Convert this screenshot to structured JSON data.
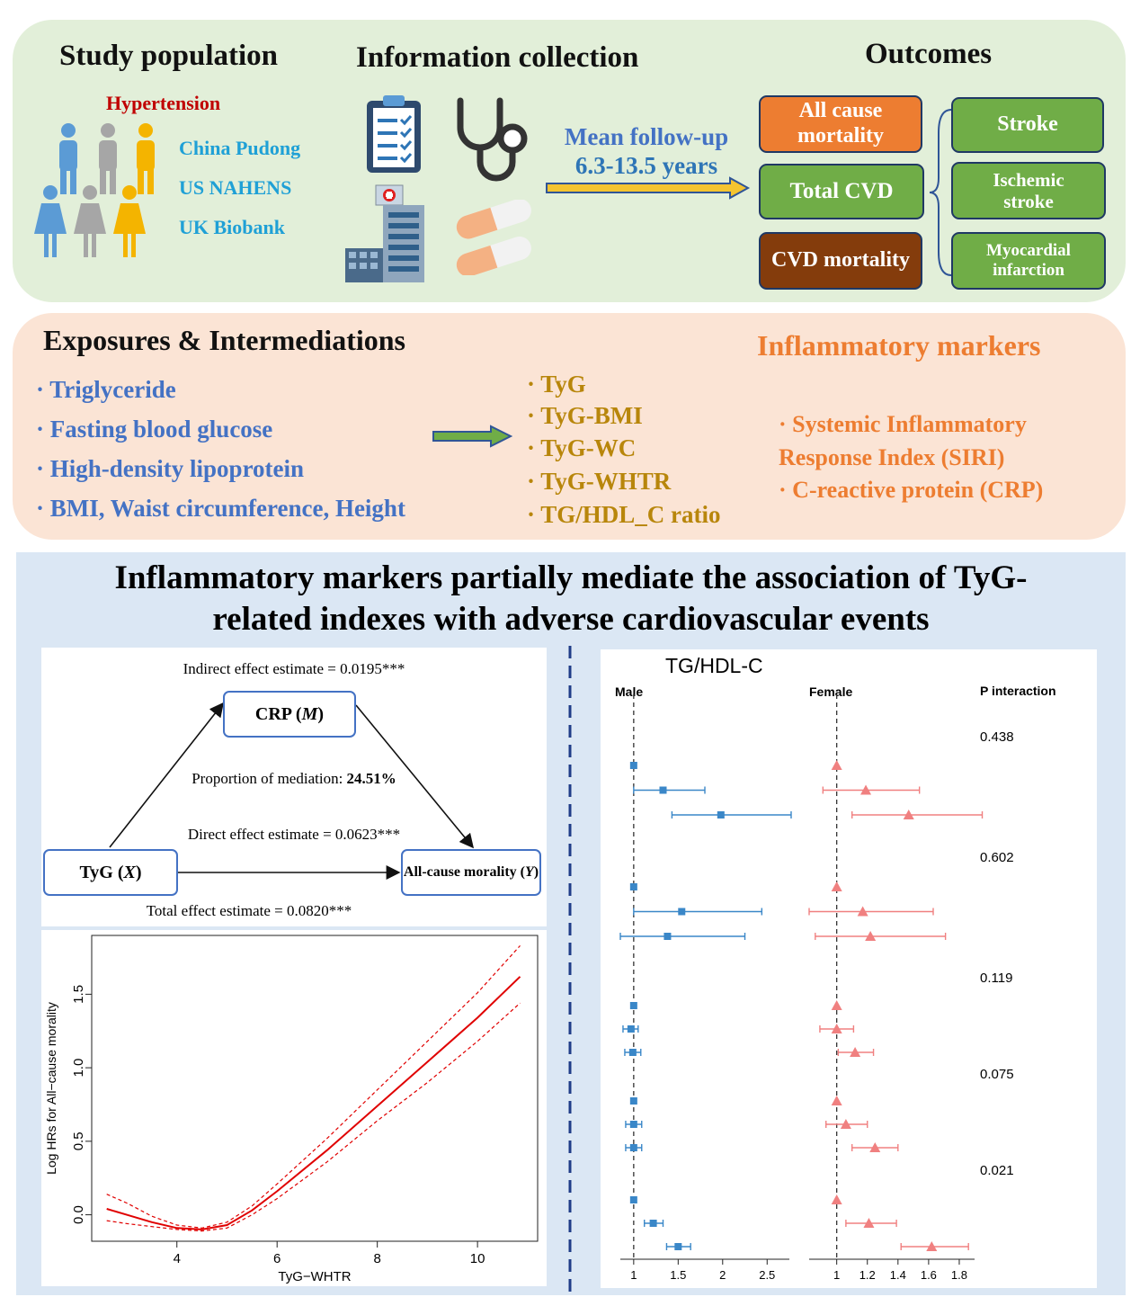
{
  "top": {
    "study_population": "Study population",
    "hypertension": "Hypertension",
    "populations": [
      "China Pudong",
      "US NAHENS",
      "UK Biobank"
    ],
    "information_collection": "Information collection",
    "followup_line1": "Mean follow-up",
    "followup_line2": "6.3-13.5 years",
    "outcomes": "Outcomes",
    "outcome_boxes": [
      "All cause mortality",
      "Total CVD",
      "CVD mortality"
    ],
    "cvd_subtypes": [
      "Stroke",
      "Ischemic stroke",
      "Myocardial infarction"
    ]
  },
  "middle": {
    "exposures_title": "Exposures & Intermediations",
    "exposures": [
      "· Triglyceride",
      "· Fasting blood glucose",
      "· High-density lipoprotein",
      "· BMI, Waist circumference, Height"
    ],
    "indexes": [
      "· TyG",
      "· TyG-BMI",
      "· TyG-WC",
      "· TyG-WHTR",
      "· TG/HDL_C ratio"
    ],
    "inflammatory_title": "Inflammatory markers",
    "markers_line1": "· Systemic Inflammatory",
    "markers_line2": "Response Index (SIRI)",
    "markers_line3": "· C-reactive protein (CRP)"
  },
  "bottom": {
    "title_line1": "Inflammatory markers partially mediate the association of TyG-",
    "title_line2": "related indexes with adverse cardiovascular events",
    "mediation": {
      "indirect": "Indirect effect estimate = 0.0195***",
      "mediator": "CRP (",
      "mediator_var": "M",
      "proportion_label": "Proportion of mediation: ",
      "proportion_value": "24.51%",
      "direct": "Direct effect estimate = 0.0623***",
      "exposure": "TyG (",
      "exposure_var": "X",
      "outcome": "All-cause morality (",
      "outcome_var": "Y",
      "total": "Total effect estimate = 0.0820***"
    },
    "forest_labels": {
      "title": "TG/HDL-C",
      "male": "Male",
      "female": "Female",
      "p_interaction": "P interaction"
    }
  },
  "chart_data": [
    {
      "type": "line",
      "xlabel": "TyG−WHTR",
      "ylabel": "Log HRs for All−cause morality",
      "xlim": [
        2.3,
        11.2
      ],
      "ylim": [
        -0.18,
        1.9
      ],
      "xticks": [
        "4",
        "6",
        "8",
        "10"
      ],
      "yticks": [
        "0.0",
        "0.5",
        "1.0",
        "1.5"
      ],
      "color": "#e00000",
      "x": [
        2.6,
        3.0,
        3.5,
        4.0,
        4.5,
        5.0,
        5.5,
        6.0,
        7.0,
        8.0,
        9.0,
        10.0,
        10.85
      ],
      "y": [
        0.04,
        0.0,
        -0.05,
        -0.09,
        -0.1,
        -0.07,
        0.03,
        0.16,
        0.44,
        0.74,
        1.04,
        1.34,
        1.62
      ],
      "lower": [
        -0.04,
        -0.06,
        -0.08,
        -0.1,
        -0.11,
        -0.09,
        0.0,
        0.11,
        0.36,
        0.64,
        0.9,
        1.18,
        1.44
      ],
      "upper": [
        0.14,
        0.08,
        -0.01,
        -0.07,
        -0.09,
        -0.05,
        0.06,
        0.21,
        0.52,
        0.85,
        1.18,
        1.51,
        1.83
      ]
    },
    {
      "type": "scatter",
      "title": "TG/HDL-C",
      "panels": [
        {
          "name": "Male",
          "xlim": [
            0.85,
            2.75
          ],
          "xticks": [
            "1",
            "1.5",
            "2",
            "2.5"
          ],
          "ref": 1,
          "color": "#3a87c8",
          "points": [
            {
              "est": 1.0,
              "lo": 1.0,
              "hi": 1.0
            },
            {
              "est": 1.33,
              "lo": 1.0,
              "hi": 1.8
            },
            {
              "est": 1.98,
              "lo": 1.43,
              "hi": 2.77
            },
            {
              "est": 1.0,
              "lo": 1.0,
              "hi": 1.0
            },
            {
              "est": 1.54,
              "lo": 1.0,
              "hi": 2.44
            },
            {
              "est": 1.38,
              "lo": 0.85,
              "hi": 2.25
            },
            {
              "est": 1.0,
              "lo": 1.0,
              "hi": 1.0
            },
            {
              "est": 0.97,
              "lo": 0.88,
              "hi": 1.05
            },
            {
              "est": 0.99,
              "lo": 0.9,
              "hi": 1.08
            },
            {
              "est": 1.0,
              "lo": 1.0,
              "hi": 1.0
            },
            {
              "est": 1.0,
              "lo": 0.91,
              "hi": 1.09
            },
            {
              "est": 1.0,
              "lo": 0.91,
              "hi": 1.09
            },
            {
              "est": 1.0,
              "lo": 1.0,
              "hi": 1.0
            },
            {
              "est": 1.22,
              "lo": 1.12,
              "hi": 1.33
            },
            {
              "est": 1.5,
              "lo": 1.37,
              "hi": 1.64
            }
          ]
        },
        {
          "name": "Female",
          "xlim": [
            0.82,
            1.9
          ],
          "xticks": [
            "1",
            "1.2",
            "1.4",
            "1.6",
            "1.8"
          ],
          "ref": 1,
          "color": "#f08080",
          "points": [
            {
              "est": 1.0,
              "lo": 1.0,
              "hi": 1.0
            },
            {
              "est": 1.19,
              "lo": 0.91,
              "hi": 1.54
            },
            {
              "est": 1.47,
              "lo": 1.1,
              "hi": 1.95
            },
            {
              "est": 1.0,
              "lo": 1.0,
              "hi": 1.0
            },
            {
              "est": 1.17,
              "lo": 0.82,
              "hi": 1.63
            },
            {
              "est": 1.22,
              "lo": 0.86,
              "hi": 1.71
            },
            {
              "est": 1.0,
              "lo": 1.0,
              "hi": 1.0
            },
            {
              "est": 1.0,
              "lo": 0.89,
              "hi": 1.11
            },
            {
              "est": 1.12,
              "lo": 1.01,
              "hi": 1.24
            },
            {
              "est": 1.0,
              "lo": 1.0,
              "hi": 1.0
            },
            {
              "est": 1.06,
              "lo": 0.93,
              "hi": 1.2
            },
            {
              "est": 1.25,
              "lo": 1.1,
              "hi": 1.4
            },
            {
              "est": 1.0,
              "lo": 1.0,
              "hi": 1.0
            },
            {
              "est": 1.21,
              "lo": 1.06,
              "hi": 1.39
            },
            {
              "est": 1.62,
              "lo": 1.42,
              "hi": 1.86
            }
          ]
        }
      ],
      "p_values": [
        "0.438",
        "0.602",
        "0.119",
        "0.075",
        "0.021"
      ]
    }
  ]
}
